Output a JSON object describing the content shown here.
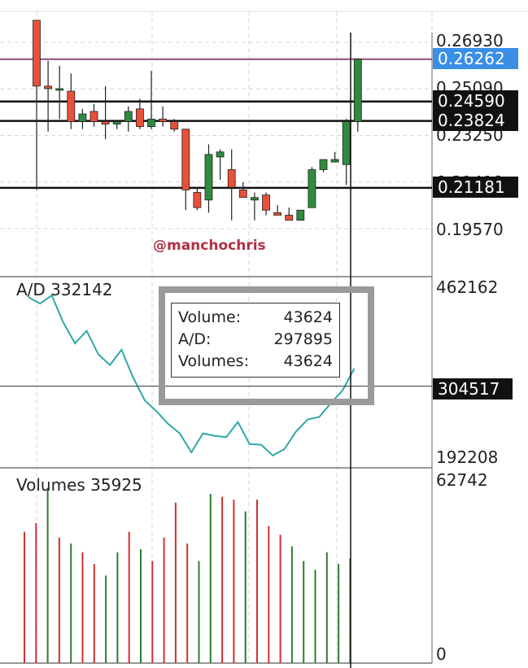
{
  "colors": {
    "up": "#2e8b3e",
    "down": "#e8503a",
    "ad_line": "#2fa8a8",
    "vol_up": "#2e7d32",
    "vol_down": "#d32f2f",
    "level_line": "#111111",
    "high_line": "#8b4a7a",
    "tag_blue": "#3a8ee6",
    "watermark": "#b03045",
    "highlight_box": "#9a9a9a"
  },
  "watermark": "@manchochris",
  "price_axis_labels": [
    "0.26930",
    "0.25090",
    "0.23250",
    "0.21410",
    "0.19570"
  ],
  "price_tags": [
    {
      "value": "0.26262",
      "style": "blue"
    },
    {
      "value": "0.24590",
      "style": "dark"
    },
    {
      "value": "0.23824",
      "style": "dark"
    },
    {
      "value": "0.21181",
      "style": "dark"
    }
  ],
  "ad_panel": {
    "label": "A/D 332142",
    "axis_top": "462162",
    "axis_bottom": "192208",
    "tag": "304517"
  },
  "volume_panel": {
    "label": "Volumes 35925",
    "axis_top": "62742",
    "axis_bottom": "0"
  },
  "infobox": {
    "rows": [
      {
        "label": "Volume:",
        "value": "43624"
      },
      {
        "label": "A/D:",
        "value": "297895"
      },
      {
        "label": "Volumes:",
        "value": "43624"
      }
    ]
  },
  "chart_data": {
    "type": "candlestick",
    "price_ticks": [
      0.2693,
      0.2509,
      0.2325,
      0.2141,
      0.1957
    ],
    "horizontal_levels": [
      0.26262,
      0.2459,
      0.23824,
      0.21181
    ],
    "candles": [
      {
        "o": 0.278,
        "h": 0.278,
        "l": 0.211,
        "c": 0.252
      },
      {
        "o": 0.252,
        "h": 0.262,
        "l": 0.234,
        "c": 0.251
      },
      {
        "o": 0.251,
        "h": 0.26,
        "l": 0.239,
        "c": 0.251
      },
      {
        "o": 0.25,
        "h": 0.257,
        "l": 0.235,
        "c": 0.238
      },
      {
        "o": 0.238,
        "h": 0.243,
        "l": 0.235,
        "c": 0.241
      },
      {
        "o": 0.242,
        "h": 0.245,
        "l": 0.236,
        "c": 0.238
      },
      {
        "o": 0.238,
        "h": 0.252,
        "l": 0.231,
        "c": 0.237
      },
      {
        "o": 0.237,
        "h": 0.238,
        "l": 0.235,
        "c": 0.238
      },
      {
        "o": 0.238,
        "h": 0.244,
        "l": 0.234,
        "c": 0.242
      },
      {
        "o": 0.243,
        "h": 0.247,
        "l": 0.235,
        "c": 0.236
      },
      {
        "o": 0.236,
        "h": 0.258,
        "l": 0.235,
        "c": 0.239
      },
      {
        "o": 0.239,
        "h": 0.244,
        "l": 0.236,
        "c": 0.238
      },
      {
        "o": 0.238,
        "h": 0.239,
        "l": 0.234,
        "c": 0.235
      },
      {
        "o": 0.235,
        "h": 0.235,
        "l": 0.203,
        "c": 0.211
      },
      {
        "o": 0.21,
        "h": 0.212,
        "l": 0.203,
        "c": 0.204
      },
      {
        "o": 0.207,
        "h": 0.229,
        "l": 0.202,
        "c": 0.225
      },
      {
        "o": 0.224,
        "h": 0.227,
        "l": 0.215,
        "c": 0.226
      },
      {
        "o": 0.219,
        "h": 0.227,
        "l": 0.199,
        "c": 0.212
      },
      {
        "o": 0.211,
        "h": 0.214,
        "l": 0.208,
        "c": 0.208
      },
      {
        "o": 0.207,
        "h": 0.21,
        "l": 0.199,
        "c": 0.208
      },
      {
        "o": 0.209,
        "h": 0.21,
        "l": 0.201,
        "c": 0.203
      },
      {
        "o": 0.202,
        "h": 0.205,
        "l": 0.201,
        "c": 0.201
      },
      {
        "o": 0.201,
        "h": 0.204,
        "l": 0.199,
        "c": 0.199
      },
      {
        "o": 0.199,
        "h": 0.203,
        "l": 0.199,
        "c": 0.203
      },
      {
        "o": 0.204,
        "h": 0.22,
        "l": 0.204,
        "c": 0.219
      },
      {
        "o": 0.219,
        "h": 0.223,
        "l": 0.218,
        "c": 0.223
      },
      {
        "o": 0.222,
        "h": 0.226,
        "l": 0.222,
        "c": 0.223
      },
      {
        "o": 0.221,
        "h": 0.239,
        "l": 0.213,
        "c": 0.238
      },
      {
        "o": 0.238,
        "h": 0.263,
        "l": 0.234,
        "c": 0.2626
      }
    ],
    "ad_range": [
      192208,
      462162
    ],
    "ad_values": [
      445000,
      435000,
      448000,
      405000,
      372000,
      392000,
      355000,
      338000,
      362000,
      318000,
      282000,
      265000,
      245000,
      230000,
      200000,
      230000,
      226000,
      224000,
      248000,
      213000,
      212000,
      195000,
      205000,
      233000,
      252000,
      256000,
      278000,
      297895,
      332142
    ],
    "volume_range": [
      0,
      62742
    ],
    "volumes": [
      45000,
      48000,
      60000,
      43000,
      41000,
      38000,
      34000,
      30000,
      38000,
      45000,
      39000,
      35000,
      43000,
      55000,
      41000,
      35000,
      58000,
      57000,
      56000,
      52000,
      56000,
      47000,
      44000,
      40000,
      35000,
      32000,
      38000,
      34000,
      35925
    ]
  }
}
